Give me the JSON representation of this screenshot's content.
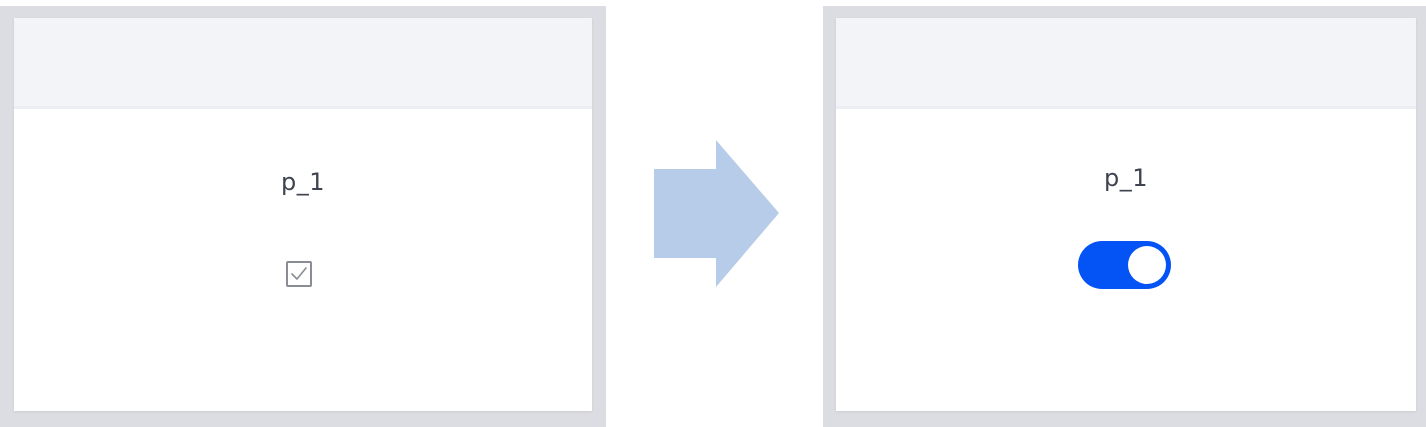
{
  "before": {
    "parameter_label": "p_1",
    "control": "checkbox",
    "checked": true
  },
  "after": {
    "parameter_label": "p_1",
    "control": "toggle-switch",
    "on": true
  },
  "colors": {
    "frame_border": "#dcdde2",
    "header_background": "#f3f4f8",
    "toggle_on": "#0453f5",
    "arrow": "#b7cce8",
    "label_text": "#3f4350"
  },
  "icons": {
    "transition": "right-arrow-icon",
    "check": "checkmark-icon"
  }
}
